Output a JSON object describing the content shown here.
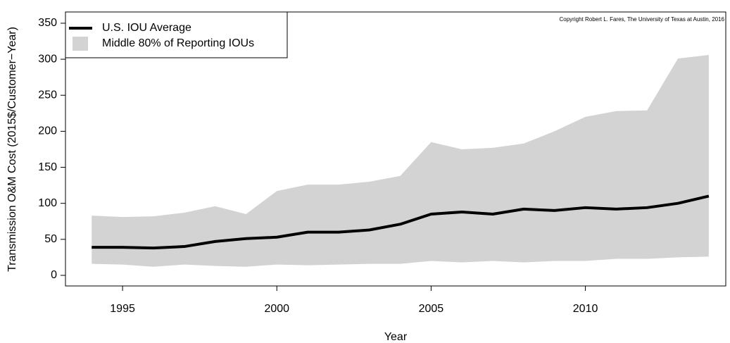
{
  "chart_data": {
    "type": "line",
    "y_label": "Transmission O&M Cost (2015$/Customer−Year)",
    "x_label": "Year",
    "annotation": "Copyright Robert L. Fares, The University of Texas at Austin, 2016",
    "x": [
      1994,
      1995,
      1996,
      1997,
      1998,
      1999,
      2000,
      2001,
      2002,
      2003,
      2004,
      2005,
      2006,
      2007,
      2008,
      2009,
      2010,
      2011,
      2012,
      2013,
      2014
    ],
    "series": [
      {
        "name": "U.S. IOU Average",
        "color": "#000000",
        "values": [
          39,
          39,
          38,
          40,
          47,
          51,
          53,
          60,
          60,
          63,
          71,
          85,
          88,
          85,
          92,
          90,
          94,
          92,
          94,
          100,
          110
        ]
      }
    ],
    "band": {
      "name": "Middle 80% of Reporting IOUs",
      "color": "#d3d3d3",
      "upper": [
        83,
        81,
        82,
        87,
        96,
        85,
        117,
        126,
        126,
        130,
        138,
        185,
        175,
        177,
        183,
        200,
        220,
        228,
        229,
        301,
        306
      ],
      "lower": [
        16,
        15,
        12,
        15,
        13,
        12,
        15,
        14,
        15,
        16,
        16,
        20,
        18,
        20,
        18,
        20,
        20,
        23,
        23,
        25,
        26
      ]
    },
    "xlim": [
      1993.15,
      2014.55
    ],
    "xticks": [
      1995,
      2000,
      2005,
      2010
    ],
    "ylim": [
      -14.7,
      365.6
    ],
    "yticks": [
      0,
      50,
      100,
      150,
      200,
      250,
      300,
      350
    ],
    "legend": "top-left"
  }
}
